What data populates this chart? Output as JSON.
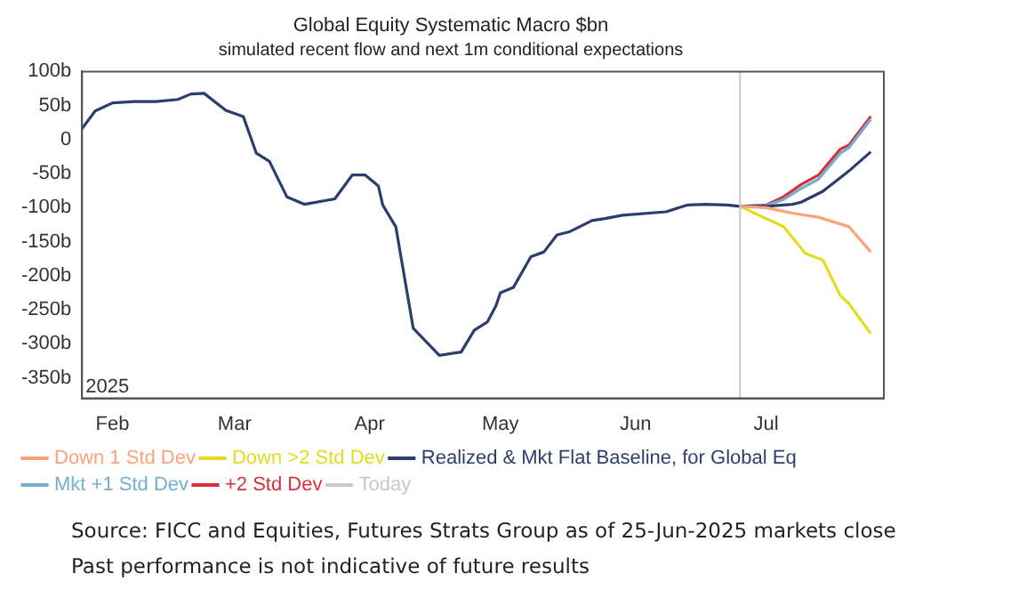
{
  "chart_data": {
    "type": "line",
    "title": "Global Equity Systematic Macro $bn",
    "subtitle": "simulated recent flow and next 1m conditional expectations",
    "xlim": [
      "2025-01-25",
      "2025-07-28"
    ],
    "xticks": [
      {
        "value": "2025-02-01",
        "label": "Feb"
      },
      {
        "value": "2025-03-01",
        "label": "Mar"
      },
      {
        "value": "2025-04-01",
        "label": "Apr"
      },
      {
        "value": "2025-05-01",
        "label": "May"
      },
      {
        "value": "2025-06-01",
        "label": "Jun"
      },
      {
        "value": "2025-07-01",
        "label": "Jul"
      }
    ],
    "ylim": [
      -380,
      100
    ],
    "yticks": [
      {
        "value": 100,
        "label": "100b"
      },
      {
        "value": 50,
        "label": "50b"
      },
      0,
      {
        "value": -50,
        "label": "-50b"
      },
      {
        "value": -100,
        "label": "-100b"
      },
      {
        "value": -150,
        "label": "-150b"
      },
      {
        "value": -200,
        "label": "-200b"
      },
      {
        "value": -250,
        "label": "-250b"
      },
      {
        "value": -300,
        "label": "-300b"
      },
      {
        "value": -350,
        "label": "-350b"
      }
    ],
    "grid": false,
    "legend": "bottom",
    "marker": "none",
    "line_style": "solid",
    "series": [
      {
        "name": "Down 1 Std Dev",
        "color": "#fca27a",
        "x": [
          "2025-06-25",
          "2025-07-01",
          "2025-07-07",
          "2025-07-13",
          "2025-07-20",
          "2025-07-25"
        ],
        "values": [
          -98,
          -100,
          -108,
          -114,
          -128,
          -165
        ]
      },
      {
        "name": "Down >2 Std Dev",
        "color": "#e3dc1c",
        "x": [
          "2025-06-25",
          "2025-07-01",
          "2025-07-05",
          "2025-07-10",
          "2025-07-14",
          "2025-07-18",
          "2025-07-20",
          "2025-07-25"
        ],
        "values": [
          -98,
          -116,
          -128,
          -167,
          -177,
          -229,
          -241,
          -285
        ]
      },
      {
        "name": "Realized & Mkt Flat Baseline, for Global Eq",
        "color": "#2c3e6c",
        "x": [
          "2025-01-25",
          "2025-01-28",
          "2025-02-01",
          "2025-02-06",
          "2025-02-11",
          "2025-02-16",
          "2025-02-19",
          "2025-02-22",
          "2025-02-27",
          "2025-03-03",
          "2025-03-06",
          "2025-03-09",
          "2025-03-13",
          "2025-03-17",
          "2025-03-24",
          "2025-03-28",
          "2025-03-31",
          "2025-04-03",
          "2025-04-04",
          "2025-04-07",
          "2025-04-11",
          "2025-04-14",
          "2025-04-17",
          "2025-04-22",
          "2025-04-25",
          "2025-04-28",
          "2025-04-30",
          "2025-05-01",
          "2025-05-04",
          "2025-05-08",
          "2025-05-11",
          "2025-05-14",
          "2025-05-17",
          "2025-05-22",
          "2025-05-25",
          "2025-05-29",
          "2025-06-08",
          "2025-06-13",
          "2025-06-17",
          "2025-06-22",
          "2025-06-25",
          "2025-07-01",
          "2025-07-07",
          "2025-07-09",
          "2025-07-14",
          "2025-07-18",
          "2025-07-20",
          "2025-07-25"
        ],
        "values": [
          16,
          42,
          54,
          56,
          56,
          59,
          67,
          68,
          43,
          34,
          -20,
          -32,
          -84,
          -95,
          -87,
          -52,
          -52,
          -68,
          -96,
          -128,
          -277,
          -297,
          -317,
          -312,
          -280,
          -268,
          -244,
          -225,
          -217,
          -172,
          -165,
          -140,
          -135,
          -119,
          -116,
          -111,
          -106,
          -96,
          -95,
          -96,
          -98,
          -98,
          -95,
          -92,
          -76,
          -56,
          -46,
          -18
        ]
      },
      {
        "name": "Mkt +1 Std Dev",
        "color": "#74afd2",
        "x": [
          "2025-06-25",
          "2025-07-01",
          "2025-07-05",
          "2025-07-09",
          "2025-07-13",
          "2025-07-18",
          "2025-07-20",
          "2025-07-25"
        ],
        "values": [
          -98,
          -97,
          -88,
          -72,
          -58,
          -20,
          -12,
          30
        ]
      },
      {
        "name": "+2 Std Dev",
        "color": "#d6303c",
        "x": [
          "2025-06-25",
          "2025-07-01",
          "2025-07-05",
          "2025-07-09",
          "2025-07-13",
          "2025-07-18",
          "2025-07-20",
          "2025-07-25"
        ],
        "values": [
          -98,
          -96,
          -84,
          -66,
          -52,
          -14,
          -8,
          34
        ]
      }
    ],
    "ref_lines": [
      {
        "axis": "x",
        "value": "2025-06-25",
        "label": "Today",
        "color": "#c8c8c8"
      }
    ],
    "annotations": [
      "2025",
      "Source: FICC and Equities, Futures Strats Group as of 25-Jun-2025 markets close",
      "Past performance is not indicative of future results"
    ]
  }
}
